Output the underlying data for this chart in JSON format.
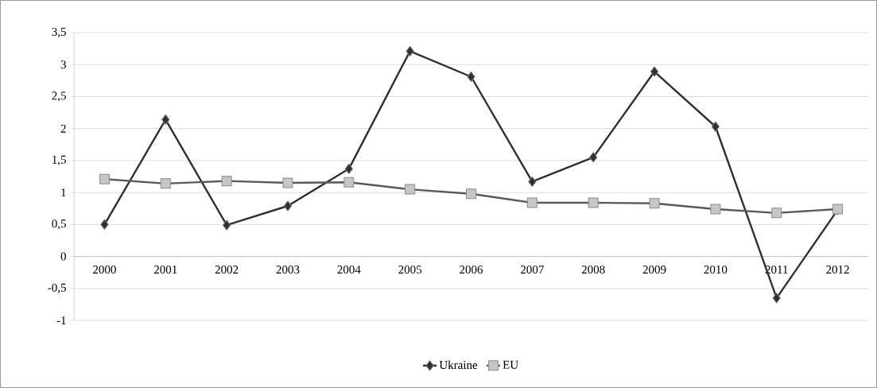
{
  "chart_data": {
    "type": "line",
    "categories": [
      "2000",
      "2001",
      "2002",
      "2003",
      "2004",
      "2005",
      "2006",
      "2007",
      "2008",
      "2009",
      "2010",
      "2011",
      "2012"
    ],
    "series": [
      {
        "name": "Ukraine",
        "color": "#303030",
        "marker": "diamond",
        "values": [
          0.5,
          2.14,
          0.49,
          0.79,
          1.37,
          3.21,
          2.81,
          1.17,
          1.55,
          2.89,
          2.03,
          -0.65,
          0.73
        ]
      },
      {
        "name": "EU",
        "color": "#5a5a5a",
        "marker": "square",
        "values": [
          1.21,
          1.14,
          1.18,
          1.15,
          1.16,
          1.05,
          0.98,
          0.84,
          0.84,
          0.83,
          0.74,
          0.68,
          0.74
        ]
      }
    ],
    "ylim": [
      -1,
      3.5
    ],
    "yticks": [
      {
        "value": -1,
        "label": "-1"
      },
      {
        "value": -0.5,
        "label": "-0,5"
      },
      0,
      {
        "value": 0.5,
        "label": "0,5"
      },
      1,
      {
        "value": 1.5,
        "label": "1,5"
      },
      2,
      {
        "value": 2.5,
        "label": "2,5"
      },
      3,
      {
        "value": 3.5,
        "label": "3,5"
      }
    ],
    "grid": "y",
    "legend": "bottom"
  }
}
